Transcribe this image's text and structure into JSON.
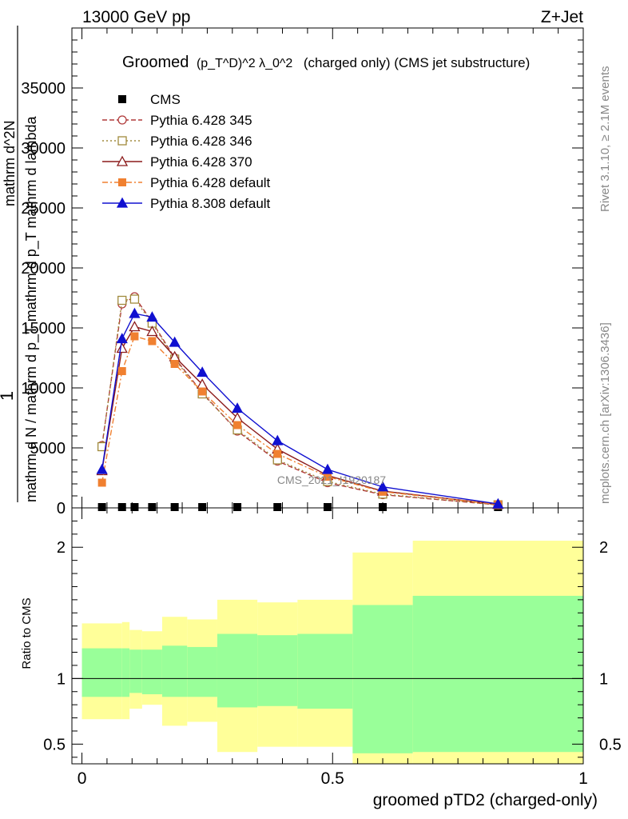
{
  "header": {
    "left": "13000 GeV pp",
    "right": "Z+Jet"
  },
  "title": {
    "prefix": "Groomed",
    "formula": "(p_T^D)^2 λ_0^2",
    "suffix": "(charged only) (CMS jet substructure)"
  },
  "side_labels": {
    "rivet": "Rivet 3.1.10, ≥ 2.1M events",
    "mcplots": "mcplots.cern.ch [arXiv:1306.3436]"
  },
  "watermark": "CMS_2021_I1920187",
  "ylabel_top": {
    "one": "1",
    "denominator": "mathrm d N / mathrm d p_T mathrm d p_T mathrm d lambda",
    "numerator": "mathrm d^2N"
  },
  "ylabel_ratio": "Ratio to CMS",
  "xlabel": "groomed pTD2 (charged-only)",
  "colors": {
    "cms": "#000000",
    "p345": "#b03a3a",
    "p346": "#a08a3c",
    "p370": "#8b1a1a",
    "p6def": "#f08030",
    "p8def": "#1010d0",
    "band_inner": "#99ff99",
    "band_outer": "#ffff99"
  },
  "chart_data": {
    "type": "line",
    "x": [
      0.04,
      0.08,
      0.105,
      0.14,
      0.185,
      0.24,
      0.31,
      0.39,
      0.49,
      0.6,
      0.83
    ],
    "xlim": [
      -0.02,
      1.0
    ],
    "ylim": [
      0,
      40000
    ],
    "ratio_ylim": [
      0.35,
      2.3
    ],
    "x_ticks": [
      0,
      0.5,
      1
    ],
    "x_tick_labels": [
      "0",
      "0.5",
      "1"
    ],
    "y_ticks": [
      5000,
      10000,
      15000,
      20000,
      25000,
      30000,
      35000
    ],
    "y_tick_labels": [
      "5000",
      "10000",
      "15000",
      "20000",
      "25000",
      "30000",
      "35000"
    ],
    "ratio_ticks": [
      0.5,
      1,
      2
    ],
    "ratio_tick_labels": [
      "0.5",
      "1",
      "2"
    ],
    "series": [
      {
        "name": "CMS",
        "key": "cms",
        "marker": "square-filled",
        "dash": "none",
        "values": [
          20,
          20,
          20,
          20,
          20,
          20,
          20,
          20,
          20,
          20,
          20
        ]
      },
      {
        "name": "Pythia 6.428 345",
        "key": "p345",
        "marker": "circle-open",
        "dash": "6,3",
        "values": [
          5200,
          17000,
          17600,
          15500,
          12500,
          9600,
          6400,
          3900,
          2100,
          1100,
          250
        ]
      },
      {
        "name": "Pythia 6.428 346",
        "key": "p346",
        "marker": "square-open",
        "dash": "2,3",
        "values": [
          5100,
          17300,
          17400,
          15400,
          12400,
          9500,
          6500,
          4000,
          2200,
          1150,
          260
        ]
      },
      {
        "name": "Pythia 6.428 370",
        "key": "p370",
        "marker": "triangle-open",
        "dash": "none",
        "values": [
          3100,
          13300,
          15100,
          14700,
          12600,
          10300,
          7500,
          4900,
          2700,
          1400,
          290
        ]
      },
      {
        "name": "Pythia 6.428 default",
        "key": "p6def",
        "marker": "square-filled",
        "dash": "7,3,2,3",
        "values": [
          2100,
          11400,
          14300,
          13900,
          12000,
          9700,
          6900,
          4500,
          2600,
          1350,
          280
        ]
      },
      {
        "name": "Pythia 8.308 default",
        "key": "p8def",
        "marker": "triangle-filled",
        "dash": "none",
        "values": [
          3200,
          14100,
          16200,
          15900,
          13800,
          11300,
          8300,
          5600,
          3200,
          1750,
          330
        ]
      }
    ],
    "ratio_bands": {
      "edges": [
        0,
        0.08,
        0.095,
        0.12,
        0.16,
        0.21,
        0.27,
        0.35,
        0.43,
        0.54,
        0.66,
        1.0
      ],
      "inner_lo": [
        0.86,
        0.86,
        0.89,
        0.88,
        0.86,
        0.86,
        0.78,
        0.79,
        0.77,
        0.43,
        0.44
      ],
      "inner_hi": [
        1.23,
        1.23,
        1.22,
        1.22,
        1.25,
        1.24,
        1.34,
        1.33,
        1.34,
        1.56,
        1.63
      ],
      "outer_lo": [
        0.69,
        0.69,
        0.77,
        0.8,
        0.64,
        0.67,
        0.44,
        0.48,
        0.48,
        0.35,
        0.35
      ],
      "outer_hi": [
        1.42,
        1.43,
        1.37,
        1.36,
        1.47,
        1.45,
        1.6,
        1.58,
        1.6,
        1.96,
        2.05
      ]
    }
  }
}
